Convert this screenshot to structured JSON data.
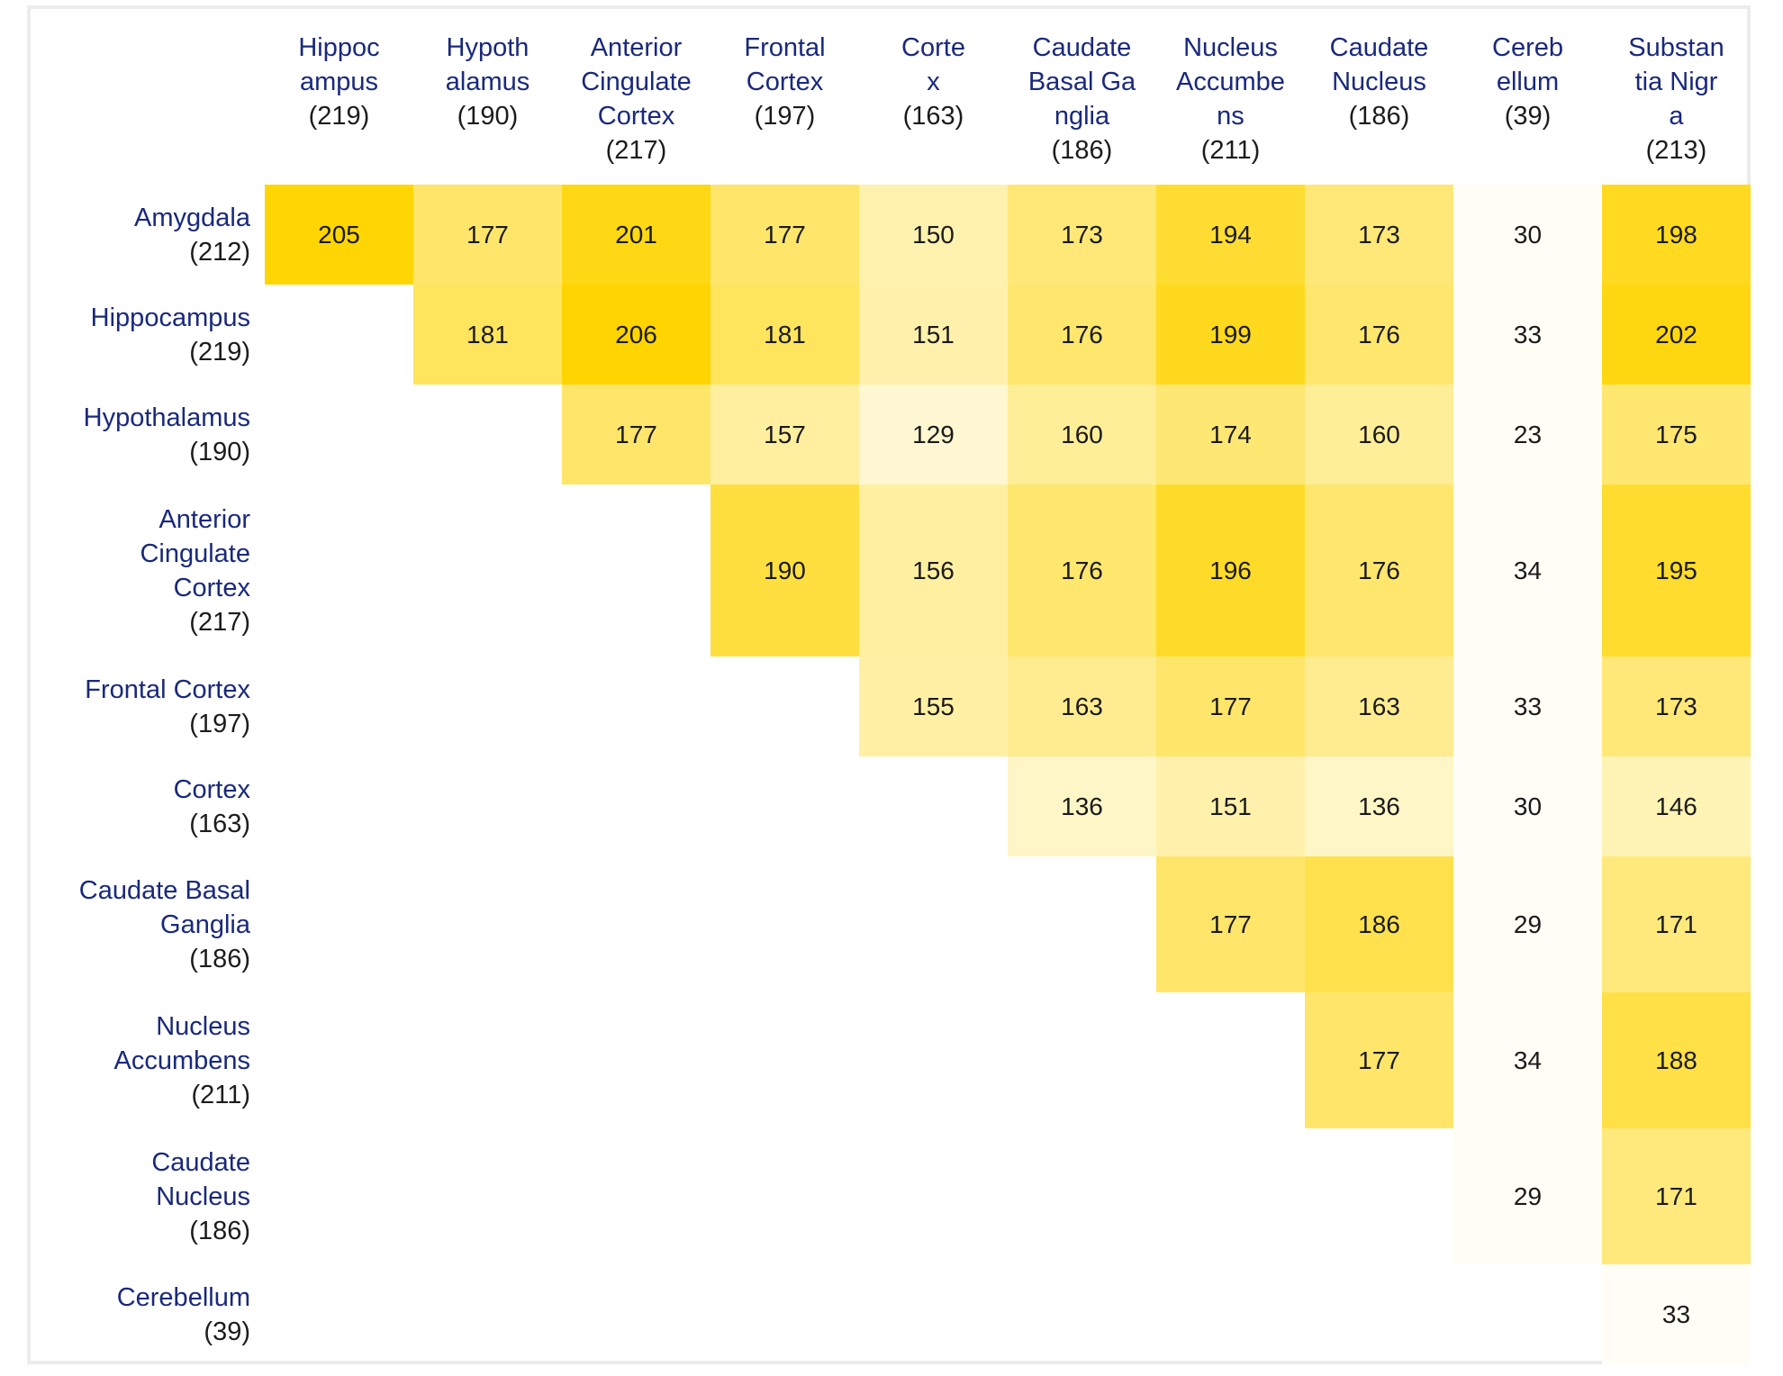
{
  "chart_data": {
    "type": "heatmap",
    "title": "",
    "layout": {
      "triangular": "upper",
      "legend": "none",
      "grid": "off",
      "row_labels_align": "right",
      "column_labels_align": "top-center"
    },
    "colors": {
      "scale_low": "#FFFFFF",
      "scale_high": "#FFD400",
      "label_text": "#19297c",
      "count_text": "#1c1c1c",
      "value_text": "#1a1a1a",
      "frame_border": "#ececec",
      "background": "#ffffff"
    },
    "color_scale": {
      "domain_min": 20,
      "domain_max": 206,
      "gamma": 3.2,
      "min_tint": 0.04
    },
    "columns": [
      {
        "name": "Hippocampus",
        "count": 219,
        "name_lines": [
          "Hippoc",
          "ampus"
        ],
        "count_label": "(219)"
      },
      {
        "name": "Hypothalamus",
        "count": 190,
        "name_lines": [
          "Hypoth",
          "alamus"
        ],
        "count_label": "(190)"
      },
      {
        "name": "Anterior Cingulate Cortex",
        "count": 217,
        "name_lines": [
          "Anterior",
          "Cingulate",
          "Cortex"
        ],
        "count_label": "(217)"
      },
      {
        "name": "Frontal Cortex",
        "count": 197,
        "name_lines": [
          "Frontal",
          "Cortex"
        ],
        "count_label": "(197)"
      },
      {
        "name": "Cortex",
        "count": 163,
        "name_lines": [
          "Corte",
          "x"
        ],
        "count_label": "(163)"
      },
      {
        "name": "Caudate Basal Ganglia",
        "count": 186,
        "name_lines": [
          "Caudate",
          "Basal Ga",
          "nglia"
        ],
        "count_label": "(186)"
      },
      {
        "name": "Nucleus Accumbens",
        "count": 211,
        "name_lines": [
          "Nucleus",
          "Accumbe",
          "ns"
        ],
        "count_label": "(211)"
      },
      {
        "name": "Caudate Nucleus",
        "count": 186,
        "name_lines": [
          "Caudate",
          "Nucleus"
        ],
        "count_label": "(186)"
      },
      {
        "name": "Cerebellum",
        "count": 39,
        "name_lines": [
          "Cereb",
          "ellum"
        ],
        "count_label": "(39)"
      },
      {
        "name": "Substantia Nigra",
        "count": 213,
        "name_lines": [
          "Substan",
          "tia Nigr",
          "a"
        ],
        "count_label": "(213)"
      }
    ],
    "rows": [
      {
        "name": "Amygdala",
        "count": 212,
        "name_lines": [
          "Amygdala"
        ],
        "count_label": "(212)",
        "values": [
          205,
          177,
          201,
          177,
          150,
          173,
          194,
          173,
          30,
          198
        ]
      },
      {
        "name": "Hippocampus",
        "count": 219,
        "name_lines": [
          "Hippocampus"
        ],
        "count_label": "(219)",
        "values": [
          null,
          181,
          206,
          181,
          151,
          176,
          199,
          176,
          33,
          202
        ]
      },
      {
        "name": "Hypothalamus",
        "count": 190,
        "name_lines": [
          "Hypothalamus"
        ],
        "count_label": "(190)",
        "values": [
          null,
          null,
          177,
          157,
          129,
          160,
          174,
          160,
          23,
          175
        ]
      },
      {
        "name": "Anterior Cingulate Cortex",
        "count": 217,
        "name_lines": [
          "Anterior",
          "Cingulate",
          "Cortex"
        ],
        "count_label": "(217)",
        "values": [
          null,
          null,
          null,
          190,
          156,
          176,
          196,
          176,
          34,
          195
        ]
      },
      {
        "name": "Frontal Cortex",
        "count": 197,
        "name_lines": [
          "Frontal Cortex"
        ],
        "count_label": "(197)",
        "values": [
          null,
          null,
          null,
          null,
          155,
          163,
          177,
          163,
          33,
          173
        ]
      },
      {
        "name": "Cortex",
        "count": 163,
        "name_lines": [
          "Cortex"
        ],
        "count_label": "(163)",
        "values": [
          null,
          null,
          null,
          null,
          null,
          136,
          151,
          136,
          30,
          146
        ]
      },
      {
        "name": "Caudate Basal Ganglia",
        "count": 186,
        "name_lines": [
          "Caudate Basal",
          "Ganglia"
        ],
        "count_label": "(186)",
        "values": [
          null,
          null,
          null,
          null,
          null,
          null,
          177,
          186,
          29,
          171
        ]
      },
      {
        "name": "Nucleus Accumbens",
        "count": 211,
        "name_lines": [
          "Nucleus",
          "Accumbens"
        ],
        "count_label": "(211)",
        "values": [
          null,
          null,
          null,
          null,
          null,
          null,
          null,
          177,
          34,
          188
        ]
      },
      {
        "name": "Caudate Nucleus",
        "count": 186,
        "name_lines": [
          "Caudate",
          "Nucleus"
        ],
        "count_label": "(186)",
        "values": [
          null,
          null,
          null,
          null,
          null,
          null,
          null,
          null,
          29,
          171
        ]
      },
      {
        "name": "Cerebellum",
        "count": 39,
        "name_lines": [
          "Cerebellum"
        ],
        "count_label": "(39)",
        "values": [
          null,
          null,
          null,
          null,
          null,
          null,
          null,
          null,
          null,
          33
        ]
      }
    ]
  }
}
